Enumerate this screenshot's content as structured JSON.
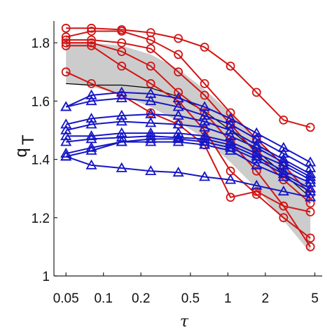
{
  "chart_data": {
    "type": "line",
    "title": "",
    "xlabel": "τ",
    "ylabel": "q_T",
    "xscale": "log",
    "xlim": [
      0.04,
      5.3
    ],
    "ylim": [
      1.0,
      1.87
    ],
    "xticks": [
      {
        "value": 0.05,
        "label": "0.05"
      },
      {
        "value": 0.1,
        "label": "0.1"
      },
      {
        "value": 0.2,
        "label": "0.2"
      },
      {
        "value": 0.5,
        "label": "0.5"
      },
      {
        "value": 1,
        "label": "1"
      },
      {
        "value": 2,
        "label": "2"
      },
      {
        "value": 5,
        "label": "5"
      }
    ],
    "yticks": [
      {
        "value": 1.0,
        "label": "1"
      },
      {
        "value": 1.2,
        "label": "1.2"
      },
      {
        "value": 1.4,
        "label": "1.4"
      },
      {
        "value": 1.6,
        "label": "1.6"
      },
      {
        "value": 1.8,
        "label": "1.8"
      }
    ],
    "grid": false,
    "band": {
      "color": "#cccccc",
      "x": [
        0.05,
        0.08,
        0.14,
        0.24,
        0.4,
        0.65,
        1.05,
        1.7,
        2.8,
        4.6
      ],
      "upper": [
        1.8,
        1.8,
        1.79,
        1.76,
        1.71,
        1.64,
        1.56,
        1.47,
        1.38,
        1.31
      ],
      "lower": [
        1.66,
        1.65,
        1.62,
        1.58,
        1.53,
        1.47,
        1.39,
        1.3,
        1.19,
        1.08
      ]
    },
    "center_line": {
      "color": "#000000",
      "x": [
        0.05,
        0.08,
        0.14,
        0.24,
        0.4,
        0.65,
        1.05,
        1.7,
        2.8,
        4.6
      ],
      "y": [
        1.66,
        1.655,
        1.655,
        1.645,
        1.615,
        1.565,
        1.5,
        1.43,
        1.35,
        1.27
      ]
    },
    "series": [
      {
        "color": "#d11515",
        "marker": "circle",
        "x": [
          0.05,
          0.08,
          0.14,
          0.24,
          0.4,
          0.65,
          1.05,
          1.7,
          2.8,
          4.6
        ],
        "y": [
          1.85,
          1.85,
          1.845,
          1.835,
          1.815,
          1.785,
          1.72,
          1.63,
          1.535,
          1.51
        ]
      },
      {
        "color": "#d11515",
        "marker": "circle",
        "x": [
          0.05,
          0.08,
          0.14,
          0.24,
          0.4,
          0.65,
          1.05,
          1.7,
          2.8,
          4.6
        ],
        "y": [
          1.82,
          1.84,
          1.84,
          1.81,
          1.76,
          1.66,
          1.56,
          1.47,
          1.38,
          1.28
        ]
      },
      {
        "color": "#d11515",
        "marker": "circle",
        "x": [
          0.05,
          0.08,
          0.14,
          0.24,
          0.4,
          0.65,
          1.05,
          1.7,
          2.8,
          4.6
        ],
        "y": [
          1.81,
          1.81,
          1.8,
          1.78,
          1.7,
          1.62,
          1.52,
          1.42,
          1.33,
          1.25
        ]
      },
      {
        "color": "#d11515",
        "marker": "circle",
        "x": [
          0.05,
          0.08,
          0.14,
          0.24,
          0.4,
          0.65,
          1.05,
          1.7,
          2.8,
          4.6
        ],
        "y": [
          1.8,
          1.8,
          1.77,
          1.72,
          1.63,
          1.56,
          1.46,
          1.36,
          1.24,
          1.1
        ]
      },
      {
        "color": "#d11515",
        "marker": "circle",
        "x": [
          0.05,
          0.08,
          0.14,
          0.24,
          0.4,
          0.65,
          1.05,
          1.7,
          2.8,
          4.6
        ],
        "y": [
          1.79,
          1.79,
          1.72,
          1.66,
          1.6,
          1.5,
          1.36,
          1.28,
          1.2,
          1.13
        ]
      },
      {
        "color": "#d11515",
        "marker": "circle",
        "x": [
          0.05,
          0.08,
          0.14,
          0.24,
          0.4,
          0.65,
          1.05,
          1.7,
          2.8,
          4.6
        ],
        "y": [
          1.7,
          1.66,
          1.62,
          1.56,
          1.52,
          1.45,
          1.27,
          1.29,
          1.24,
          1.22
        ]
      },
      {
        "color": "#1515c8",
        "marker": "triangle",
        "x": [
          0.05,
          0.08,
          0.14,
          0.24,
          0.4,
          0.65,
          1.05,
          1.7,
          2.8,
          4.6
        ],
        "y": [
          1.58,
          1.62,
          1.63,
          1.625,
          1.61,
          1.58,
          1.54,
          1.49,
          1.44,
          1.39
        ]
      },
      {
        "color": "#1515c8",
        "marker": "triangle",
        "x": [
          0.05,
          0.08,
          0.14,
          0.24,
          0.4,
          0.65,
          1.05,
          1.7,
          2.8,
          4.6
        ],
        "y": [
          1.58,
          1.6,
          1.61,
          1.6,
          1.58,
          1.55,
          1.52,
          1.47,
          1.42,
          1.37
        ]
      },
      {
        "color": "#1515c8",
        "marker": "triangle",
        "x": [
          0.05,
          0.08,
          0.14,
          0.24,
          0.4,
          0.65,
          1.05,
          1.7,
          2.8,
          4.6
        ],
        "y": [
          1.52,
          1.54,
          1.55,
          1.555,
          1.55,
          1.53,
          1.5,
          1.45,
          1.4,
          1.35
        ]
      },
      {
        "color": "#1515c8",
        "marker": "triangle",
        "x": [
          0.05,
          0.08,
          0.14,
          0.24,
          0.4,
          0.65,
          1.05,
          1.7,
          2.8,
          4.6
        ],
        "y": [
          1.5,
          1.52,
          1.53,
          1.525,
          1.52,
          1.51,
          1.48,
          1.44,
          1.39,
          1.34
        ]
      },
      {
        "color": "#1515c8",
        "marker": "triangle",
        "x": [
          0.05,
          0.08,
          0.14,
          0.24,
          0.4,
          0.65,
          1.05,
          1.7,
          2.8,
          4.6
        ],
        "y": [
          1.48,
          1.48,
          1.49,
          1.49,
          1.49,
          1.48,
          1.46,
          1.42,
          1.38,
          1.33
        ]
      },
      {
        "color": "#1515c8",
        "marker": "triangle",
        "x": [
          0.05,
          0.08,
          0.14,
          0.24,
          0.4,
          0.65,
          1.05,
          1.7,
          2.8,
          4.6
        ],
        "y": [
          1.46,
          1.47,
          1.475,
          1.48,
          1.475,
          1.47,
          1.45,
          1.41,
          1.36,
          1.32
        ]
      },
      {
        "color": "#1515c8",
        "marker": "triangle",
        "x": [
          0.05,
          0.08,
          0.14,
          0.24,
          0.4,
          0.65,
          1.05,
          1.7,
          2.8,
          4.6
        ],
        "y": [
          1.42,
          1.44,
          1.46,
          1.47,
          1.47,
          1.46,
          1.44,
          1.4,
          1.35,
          1.3
        ]
      },
      {
        "color": "#1515c8",
        "marker": "triangle",
        "x": [
          0.05,
          0.08,
          0.14,
          0.24,
          0.4,
          0.65,
          1.05,
          1.7,
          2.8,
          4.6
        ],
        "y": [
          1.41,
          1.43,
          1.46,
          1.46,
          1.46,
          1.45,
          1.43,
          1.38,
          1.34,
          1.29
        ]
      },
      {
        "color": "#1515c8",
        "marker": "triangle",
        "x": [
          0.05,
          0.08,
          0.14,
          0.24,
          0.4,
          0.65,
          1.05,
          1.7,
          2.8,
          4.6
        ],
        "y": [
          1.41,
          1.38,
          1.37,
          1.36,
          1.355,
          1.34,
          1.33,
          1.31,
          1.29,
          1.27
        ]
      }
    ]
  }
}
